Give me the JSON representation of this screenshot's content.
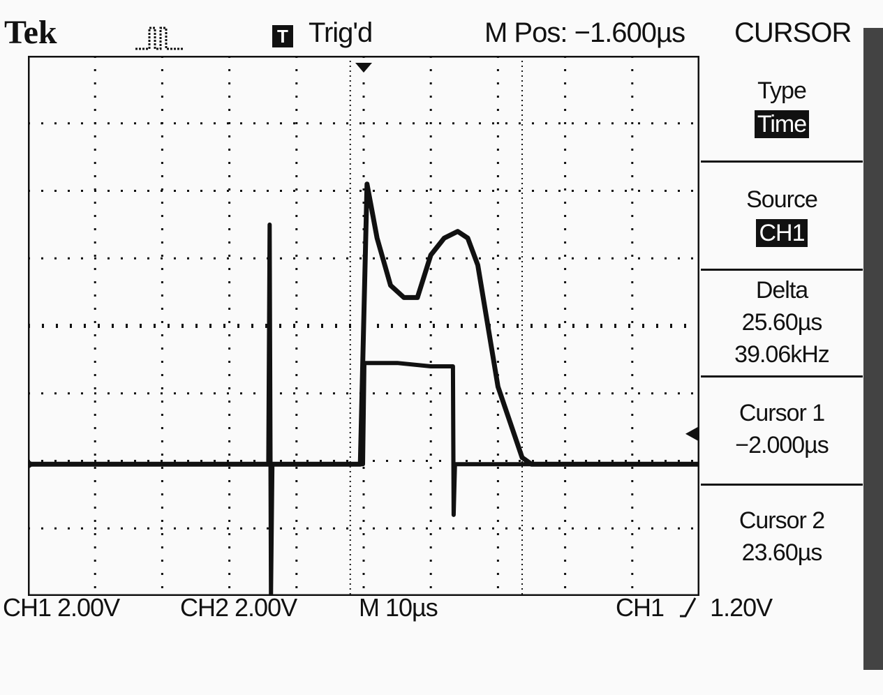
{
  "header": {
    "brand": "Tek",
    "acquire_icon": "acquisition-pulse-icon",
    "trigger_badge": "T",
    "trigger_status": "Trig'd",
    "main_position": "M Pos: −1.600µs",
    "menu_title": "CURSOR"
  },
  "menu": {
    "type_label": "Type",
    "type_value": "Time",
    "source_label": "Source",
    "source_value": "CH1",
    "delta_label": "Delta",
    "delta_time": "25.60µs",
    "delta_freq": "39.06kHz",
    "cursor1_label": "Cursor 1",
    "cursor1_value": "−2.000µs",
    "cursor2_label": "Cursor 2",
    "cursor2_value": "23.60µs"
  },
  "footer": {
    "ch1_scale": "CH1 2.00V",
    "ch2_scale": "CH2 2.00V",
    "timebase": "M 10µs",
    "trigger_source": "CH1",
    "trigger_slope_icon": "rising-edge-icon",
    "trigger_level": "1.20V"
  },
  "chart_data": {
    "type": "line",
    "x_unit": "µs",
    "y_unit": "divisions",
    "xlim": [
      -50,
      50
    ],
    "ylim": [
      -4,
      4
    ],
    "grid": true,
    "cursors_x": [
      -2.0,
      23.6
    ],
    "series": [
      {
        "x": [
          -50,
          -2.0,
          -0.5,
          0.5,
          2,
          4,
          6,
          8,
          10,
          12,
          14,
          15.5,
          17,
          20,
          23.6,
          25,
          50
        ],
        "y": [
          -2.05,
          -2.05,
          -2.05,
          2.1,
          1.3,
          0.6,
          0.42,
          0.42,
          1.05,
          1.3,
          1.4,
          1.3,
          0.9,
          -0.9,
          -1.95,
          -2.05,
          -2.05
        ]
      },
      {
        "x": [
          -50,
          -14.2,
          -14.0,
          -13.8,
          -13.6,
          -0.1,
          0.1,
          5,
          10,
          13.3,
          13.4,
          13.6,
          14.0,
          50
        ],
        "y": [
          -2.05,
          -2.05,
          1.5,
          -4.0,
          -2.05,
          -2.05,
          -0.55,
          -0.55,
          -0.6,
          -0.6,
          -2.8,
          -2.05,
          -2.05,
          -2.05
        ]
      }
    ]
  }
}
